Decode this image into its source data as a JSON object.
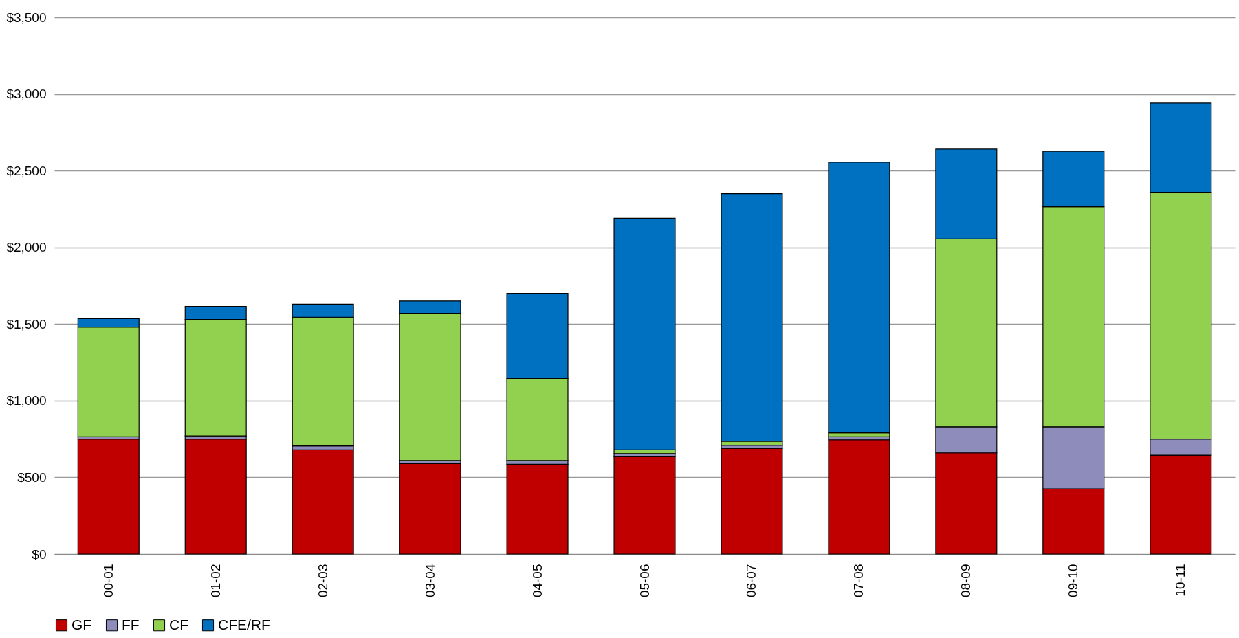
{
  "chart_data": {
    "type": "bar",
    "stacked": true,
    "categories": [
      "00-01",
      "01-02",
      "02-03",
      "03-04",
      "04-05",
      "05-06",
      "06-07",
      "07-08",
      "08-09",
      "09-10",
      "10-11"
    ],
    "series": [
      {
        "name": "GF",
        "color": "#c00000",
        "values": [
          750,
          750,
          680,
          590,
          585,
          635,
          690,
          745,
          660,
          425,
          645
        ]
      },
      {
        "name": "FF",
        "color": "#8e8cba",
        "values": [
          15,
          20,
          25,
          20,
          25,
          20,
          20,
          20,
          170,
          405,
          105
        ]
      },
      {
        "name": "CF",
        "color": "#92d050",
        "values": [
          715,
          760,
          840,
          960,
          535,
          25,
          25,
          25,
          1225,
          1435,
          1605
        ]
      },
      {
        "name": "CFE/RF",
        "color": "#0070c0",
        "values": [
          55,
          85,
          85,
          80,
          555,
          1510,
          1615,
          1765,
          585,
          360,
          585
        ]
      }
    ],
    "ylim": [
      0,
      3500
    ],
    "yticks": [
      {
        "value": 0,
        "label": "$0"
      },
      {
        "value": 500,
        "label": "$500"
      },
      {
        "value": 1000,
        "label": "$1,000"
      },
      {
        "value": 1500,
        "label": "$1,500"
      },
      {
        "value": 2000,
        "label": "$2,000"
      },
      {
        "value": 2500,
        "label": "$2,500"
      },
      {
        "value": 3000,
        "label": "$3,000"
      },
      {
        "value": 3500,
        "label": "$3,500"
      }
    ],
    "grid": "y",
    "legend": "bottom"
  }
}
